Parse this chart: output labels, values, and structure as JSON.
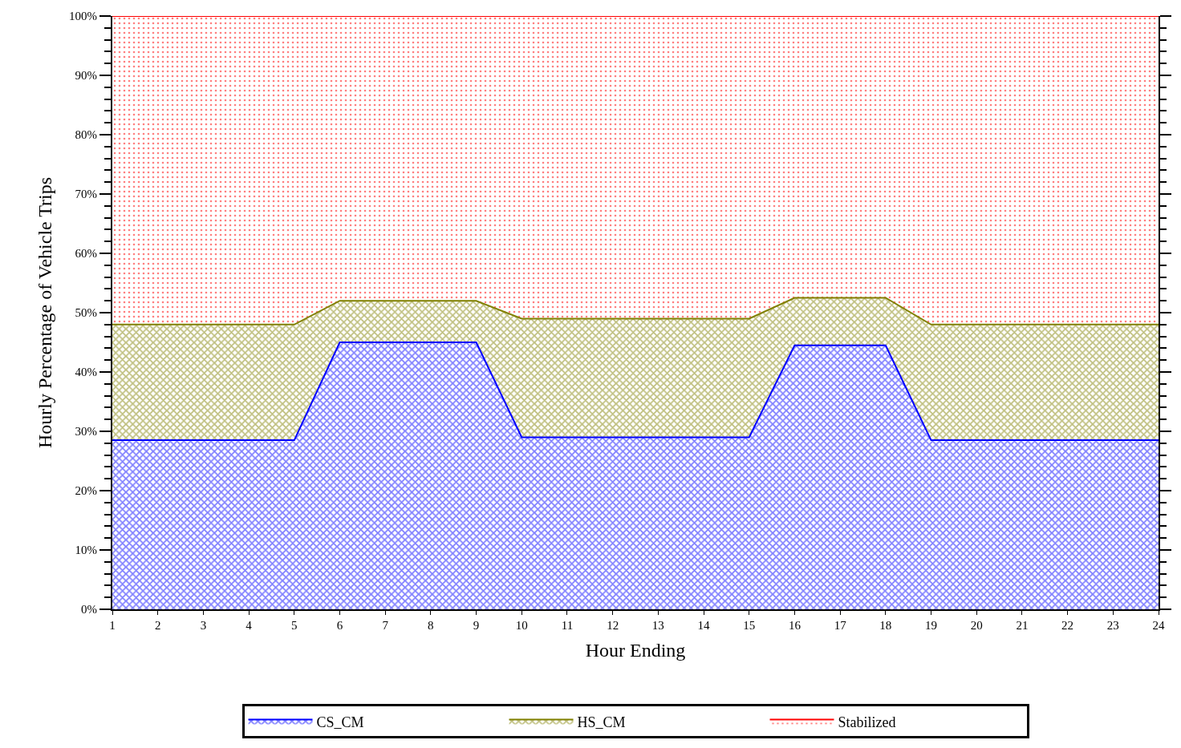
{
  "chart_data": {
    "type": "area",
    "stacked": true,
    "xlabel": "Hour Ending",
    "ylabel": "Hourly Percentage of Vehicle Trips",
    "x": [
      1,
      2,
      3,
      4,
      5,
      6,
      7,
      8,
      9,
      10,
      11,
      12,
      13,
      14,
      15,
      16,
      17,
      18,
      19,
      20,
      21,
      22,
      23,
      24
    ],
    "xlim": [
      1,
      24
    ],
    "xticks": [
      1,
      2,
      3,
      4,
      5,
      6,
      7,
      8,
      9,
      10,
      11,
      12,
      13,
      14,
      15,
      16,
      17,
      18,
      19,
      20,
      21,
      22,
      23,
      24
    ],
    "ylim": [
      0,
      100
    ],
    "yticks": [
      {
        "value": 0,
        "label": "0%"
      },
      {
        "value": 10,
        "label": "10%"
      },
      {
        "value": 20,
        "label": "20%"
      },
      {
        "value": 30,
        "label": "30%"
      },
      {
        "value": 40,
        "label": "40%"
      },
      {
        "value": 50,
        "label": "50%"
      },
      {
        "value": 60,
        "label": "60%"
      },
      {
        "value": 70,
        "label": "70%"
      },
      {
        "value": 80,
        "label": "80%"
      },
      {
        "value": 90,
        "label": "90%"
      },
      {
        "value": 100,
        "label": "100%"
      }
    ],
    "legend": "bottom",
    "series": [
      {
        "name": "CS_CM",
        "color": "#0000ff",
        "values": [
          28.5,
          28.5,
          28.5,
          28.5,
          28.5,
          45,
          45,
          45,
          45,
          29,
          29,
          29,
          29,
          29,
          29,
          44.5,
          44.5,
          44.5,
          28.5,
          28.5,
          28.5,
          28.5,
          28.5,
          28.5
        ]
      },
      {
        "name": "HS_CM",
        "color": "#808000",
        "values": [
          19.5,
          19.5,
          19.5,
          19.5,
          19.5,
          7,
          7,
          7,
          7,
          20,
          20,
          20,
          20,
          20,
          20,
          8,
          8,
          8,
          19.5,
          19.5,
          19.5,
          19.5,
          19.5,
          19.5
        ]
      },
      {
        "name": "Stabilized",
        "color": "#ff0000",
        "values": [
          52,
          52,
          52,
          52,
          52,
          48,
          48,
          48,
          48,
          51,
          51,
          51,
          51,
          51,
          51,
          47.5,
          47.5,
          47.5,
          52,
          52,
          52,
          52,
          52,
          52
        ]
      }
    ]
  }
}
